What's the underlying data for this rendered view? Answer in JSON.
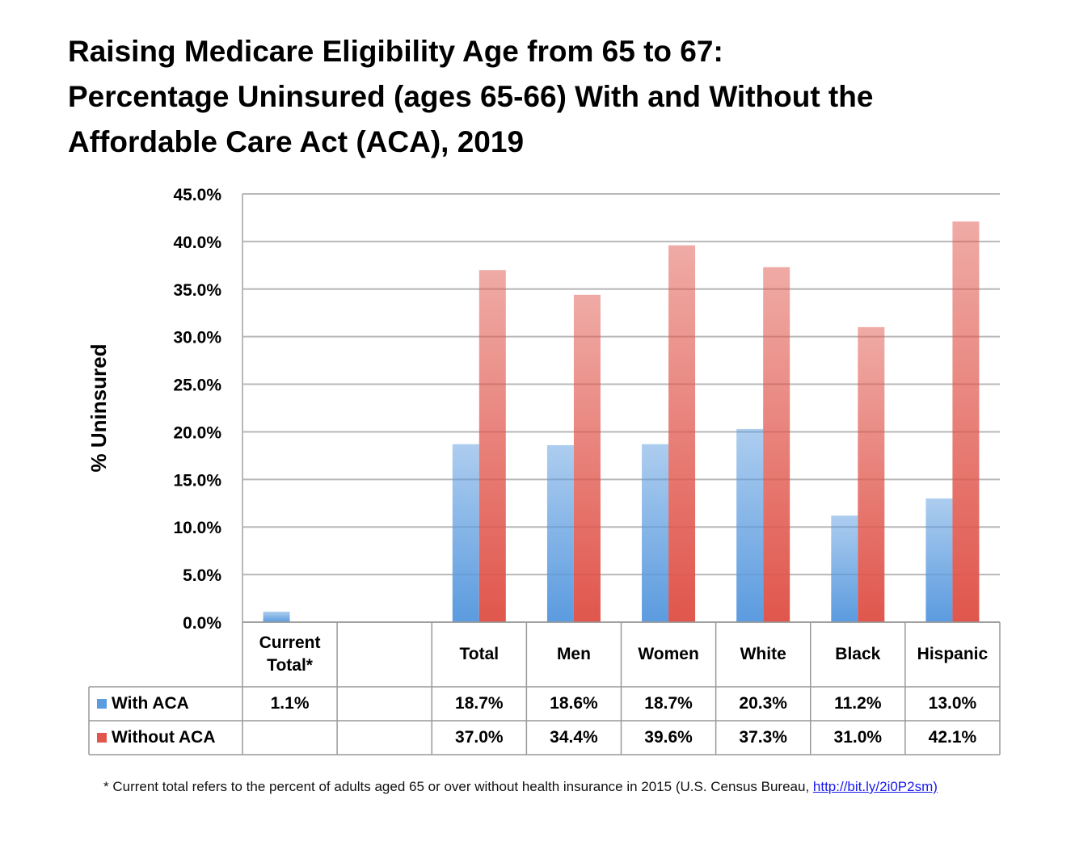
{
  "chart_data": {
    "type": "bar",
    "title": [
      "Raising Medicare Eligibility Age from 65 to 67:",
      "Percentage Uninsured (ages 65-66) With and Without the",
      "Affordable Care Act (ACA), 2019"
    ],
    "y_label": "% Uninsured",
    "categories": [
      "Current Total*",
      null,
      "Total",
      "Men",
      "Women",
      "White",
      "Black",
      "Hispanic"
    ],
    "series": [
      {
        "name": "With ACA",
        "color": "#5b9bdf",
        "values": [
          1.1,
          null,
          18.7,
          18.6,
          18.7,
          20.3,
          11.2,
          13.0
        ],
        "value_labels": [
          "1.1%",
          null,
          "18.7%",
          "18.6%",
          "18.7%",
          "20.3%",
          "11.2%",
          "13.0%"
        ]
      },
      {
        "name": "Without ACA",
        "color": "#e0564c",
        "values": [
          null,
          null,
          37.0,
          34.4,
          39.6,
          37.3,
          31.0,
          42.1
        ],
        "value_labels": [
          null,
          null,
          "37.0%",
          "34.4%",
          "39.6%",
          "37.3%",
          "31.0%",
          "42.1%"
        ]
      }
    ],
    "ylim": [
      0,
      45
    ],
    "yticks": [
      {
        "value": 0,
        "label": "0.0%"
      },
      {
        "value": 5,
        "label": "5.0%"
      },
      {
        "value": 10,
        "label": "10.0%"
      },
      {
        "value": 15,
        "label": "15.0%"
      },
      {
        "value": 20,
        "label": "20.0%"
      },
      {
        "value": 25,
        "label": "25.0%"
      },
      {
        "value": 30,
        "label": "30.0%"
      },
      {
        "value": 35,
        "label": "35.0%"
      },
      {
        "value": 40,
        "label": "40.0%"
      },
      {
        "value": 45,
        "label": "45.0%"
      }
    ],
    "grid": true,
    "footnote": "* Current total refers to the percent of adults aged 65 or over without health insurance in 2015 (U.S. Census Bureau,",
    "footnote_link": "http://bit.ly/2i0P2sm)"
  }
}
